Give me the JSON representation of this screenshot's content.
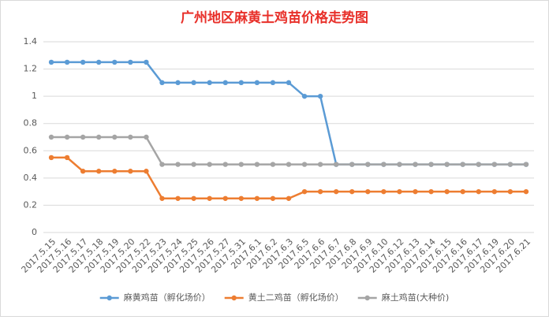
{
  "chart_data": {
    "type": "line",
    "title": "广州地区麻黄土鸡苗价格走势图",
    "categories": [
      "2017.5.15",
      "2017.5.16",
      "2017.5.17",
      "2017.5.18",
      "2017.5.19",
      "2017.5.20",
      "2017.5.22",
      "2017.5.23",
      "2017.5.24",
      "2017.5.25",
      "2017.5.26",
      "2017.5.27",
      "2017.5.31",
      "2017.6.1",
      "2017.6.2",
      "2017.6.3",
      "2017.6.5",
      "2017.6.6",
      "2017.6.7",
      "2017.6.8",
      "2017.6.9",
      "2017.6.10",
      "2017.6.12",
      "2017.6.13",
      "2017.6.14",
      "2017.6.15",
      "2017.6.16",
      "2017.6.17",
      "2017.6.19",
      "2017.6.20",
      "2017.6.21"
    ],
    "series": [
      {
        "name": "麻黄鸡苗（孵化场价）",
        "color": "#5b9bd5",
        "values": [
          1.25,
          1.25,
          1.25,
          1.25,
          1.25,
          1.25,
          1.25,
          1.1,
          1.1,
          1.1,
          1.1,
          1.1,
          1.1,
          1.1,
          1.1,
          1.1,
          1.0,
          1.0,
          0.5,
          0.5,
          0.5,
          0.5,
          0.5,
          0.5,
          0.5,
          0.5,
          0.5,
          0.5,
          0.5,
          0.5,
          0.5
        ]
      },
      {
        "name": "黄土二鸡苗（孵化场价）",
        "color": "#ed7d31",
        "values": [
          0.55,
          0.55,
          0.45,
          0.45,
          0.45,
          0.45,
          0.45,
          0.25,
          0.25,
          0.25,
          0.25,
          0.25,
          0.25,
          0.25,
          0.25,
          0.25,
          0.3,
          0.3,
          0.3,
          0.3,
          0.3,
          0.3,
          0.3,
          0.3,
          0.3,
          0.3,
          0.3,
          0.3,
          0.3,
          0.3,
          0.3
        ]
      },
      {
        "name": "麻土鸡苗(大种价)",
        "color": "#a5a5a5",
        "values": [
          0.7,
          0.7,
          0.7,
          0.7,
          0.7,
          0.7,
          0.7,
          0.5,
          0.5,
          0.5,
          0.5,
          0.5,
          0.5,
          0.5,
          0.5,
          0.5,
          0.5,
          0.5,
          0.5,
          0.5,
          0.5,
          0.5,
          0.5,
          0.5,
          0.5,
          0.5,
          0.5,
          0.5,
          0.5,
          0.5,
          0.5
        ]
      }
    ],
    "ylim": [
      0,
      1.4
    ],
    "yticks": [
      0,
      0.2,
      0.4,
      0.6,
      0.8,
      1,
      1.2,
      1.4
    ],
    "grid": true,
    "legend": "bottom",
    "title_color": "#e8302a"
  }
}
